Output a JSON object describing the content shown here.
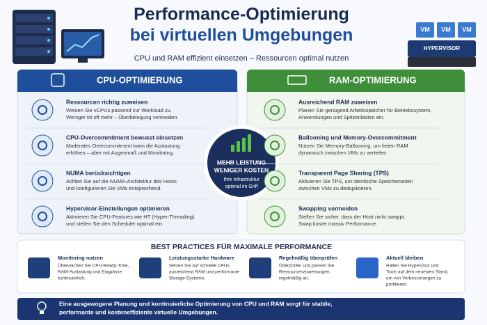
{
  "header": {
    "title": [
      "Performance-Optimierung",
      "bei virtuellen Umgebungen"
    ],
    "subtitle": "CPU und RAM effizient einsetzen – Ressourcen optimal nutzen",
    "illustration": {
      "vms": [
        "VM",
        "VM",
        "VM"
      ],
      "hypervisor": "HYPERVISOR"
    }
  },
  "cpu": {
    "title": "CPU-OPTIMIERUNG",
    "items": [
      {
        "title": "Ressourcen richtig zuweisen",
        "text": [
          "Weisen Sie vCPUs passend zur Workload zu.",
          "Weniger ist oft mehr – Überbelegung vermeiden."
        ]
      },
      {
        "title": "CPU-Overcommitment bewusst einsetzen",
        "text": [
          "Moderates Overcommitment kann die Auslastung",
          "erhöhen – aber mit Augenmaß und Monitoring."
        ]
      },
      {
        "title": "NUMA berücksichtigen",
        "text": [
          "Achten Sie auf die NUMA-Architektur des Hosts",
          "und konfigurieren Sie VMs entsprechend."
        ]
      },
      {
        "title": "Hypervisor-Einstellungen optimieren",
        "text": [
          "Aktivieren Sie CPU-Features wie HT (Hyper-Threading)",
          "und stellen Sie den Scheduler optimal ein."
        ]
      }
    ]
  },
  "ram": {
    "title": "RAM-OPTIMIERUNG",
    "items": [
      {
        "title": "Ausreichend RAM zuweisen",
        "text": [
          "Planen Sie genügend Arbeitsspeicher für Betriebssystem,",
          "Anwendungen und Spitzenlasten ein."
        ]
      },
      {
        "title": "Ballooning und Memory-Overcommitment",
        "text": [
          "Nutzen Sie Memory-Ballooning, um freien RAM",
          "dynamisch zwischen VMs zu verteilen."
        ]
      },
      {
        "title": "Transparent Page Sharing (TPS)",
        "text": [
          "Aktivieren Sie TPS, um identische Speicherseiten",
          "zwischen VMs zu deduplizieren."
        ]
      },
      {
        "title": "Swapping vermeiden",
        "text": [
          "Stellen Sie sicher, dass der Host nicht swappt.",
          "Swap kostet massiv Performance."
        ]
      }
    ]
  },
  "center": {
    "headline": [
      "MEHR LEISTUNG",
      "WENIGER KOSTEN"
    ],
    "text": [
      "Ihre Infrastruktur",
      "optimal im Griff"
    ]
  },
  "best_practices": {
    "title": "BEST PRACTICES FÜR MAXIMALE PERFORMANCE",
    "items": [
      {
        "title": "Monitoring nutzen",
        "text": [
          "Überwachen Sie CPU-Ready-Time,",
          "RAM-Auslastung und Engpässe",
          "kontinuierlich."
        ]
      },
      {
        "title": "Leistungsstarke Hardware",
        "text": [
          "Setzen Sie auf schnelle CPUs,",
          "ausreichend RAM und performante",
          "Storage-Systeme."
        ]
      },
      {
        "title": "Regelmäßig überprüfen",
        "text": [
          "Überprüfen und passen Sie",
          "Ressourcenzuweisungen",
          "regelmäßig an."
        ]
      },
      {
        "title": "Aktuell bleiben",
        "text": [
          "Halten Sie Hypervisor und",
          "Tools auf dem neuesten Stand,",
          "um von Verbesserungen zu",
          "profitieren."
        ]
      }
    ]
  },
  "footer": {
    "text": [
      "Eine ausgewogene Planung und kontinuierliche Optimierung von CPU und RAM sorgt für stabile,",
      "performante und kosteneffiziente virtuelle Umgebungen."
    ]
  }
}
